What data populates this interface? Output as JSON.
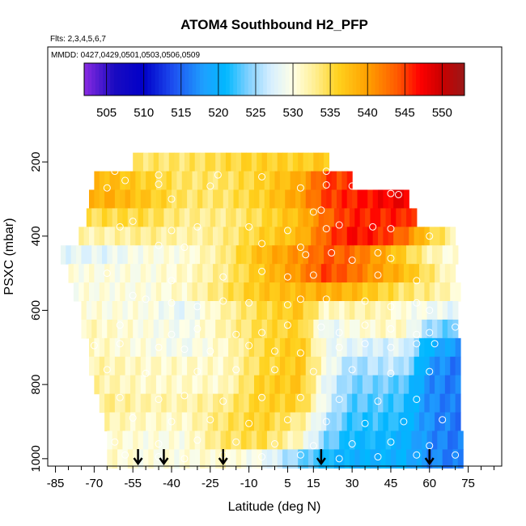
{
  "chart_data": {
    "type": "heatmap",
    "title": "ATOM4 Southbound H2_PFP",
    "flights_note": "Flts: 2,3,4,5,6,7",
    "dates_note": "MMDD: 0427,0429,0501,0503,0506,0509",
    "xlabel": "Latitude (deg N)",
    "ylabel": "PSXC (mbar)",
    "xlim": [
      -88,
      88
    ],
    "ylim": [
      1020,
      -110
    ],
    "x_ticks": [
      -85,
      -70,
      -55,
      -40,
      -25,
      -10,
      5,
      15,
      30,
      45,
      60,
      75
    ],
    "y_ticks": [
      200,
      400,
      600,
      800,
      1000
    ],
    "colorbar": {
      "ticks": [
        505,
        510,
        515,
        520,
        525,
        530,
        535,
        540,
        545,
        550
      ],
      "range": [
        502,
        553
      ],
      "stops": [
        {
          "v": 502,
          "c": "#8a2be2"
        },
        {
          "v": 506,
          "c": "#1a0bc0"
        },
        {
          "v": 510,
          "c": "#0000c8"
        },
        {
          "v": 514,
          "c": "#1e50f0"
        },
        {
          "v": 518,
          "c": "#1ea0ff"
        },
        {
          "v": 521,
          "c": "#00b8ff"
        },
        {
          "v": 524,
          "c": "#80d0ff"
        },
        {
          "v": 527,
          "c": "#d6efff"
        },
        {
          "v": 530,
          "c": "#ffffe6"
        },
        {
          "v": 533,
          "c": "#ffee90"
        },
        {
          "v": 536,
          "c": "#ffd21e"
        },
        {
          "v": 540,
          "c": "#ffa000"
        },
        {
          "v": 544,
          "c": "#ff5a00"
        },
        {
          "v": 547,
          "c": "#ff0000"
        },
        {
          "v": 550,
          "c": "#c80000"
        },
        {
          "v": 553,
          "c": "#9a1818"
        }
      ]
    },
    "pressure_levels": [
      200,
      250,
      300,
      350,
      400,
      450,
      500,
      550,
      600,
      650,
      700,
      750,
      800,
      850,
      900,
      950,
      1000
    ],
    "latitude_range_by_level": [
      [
        -55,
        20
      ],
      [
        -70,
        30
      ],
      [
        -72,
        52
      ],
      [
        -73,
        55
      ],
      [
        -76,
        70
      ],
      [
        -83,
        70
      ],
      [
        -80,
        70
      ],
      [
        -78,
        71
      ],
      [
        -75,
        71
      ],
      [
        -75,
        71
      ],
      [
        -72,
        72
      ],
      [
        -72,
        72
      ],
      [
        -70,
        72
      ],
      [
        -68,
        72
      ],
      [
        -66,
        72
      ],
      [
        -65,
        72
      ],
      [
        -65,
        72
      ]
    ],
    "profile_anchors": [
      {
        "lat": -80,
        "values": [
          533,
          537,
          537,
          534,
          532,
          528,
          530,
          530,
          531,
          532,
          532,
          532,
          533,
          534,
          534,
          534,
          534
        ]
      },
      {
        "lat": -65,
        "values": [
          533,
          538,
          539,
          535,
          532,
          528,
          530,
          530,
          530,
          531,
          531,
          532,
          532,
          533,
          532,
          531,
          531
        ]
      },
      {
        "lat": -50,
        "values": [
          534,
          536,
          537,
          535,
          533,
          530,
          530,
          530,
          530,
          530,
          530,
          531,
          531,
          532,
          531,
          530,
          530
        ]
      },
      {
        "lat": -35,
        "values": [
          534,
          534,
          534,
          533,
          532,
          530,
          531,
          531,
          528,
          529,
          529,
          531,
          531,
          532,
          531,
          530,
          530
        ]
      },
      {
        "lat": -20,
        "values": [
          535,
          534,
          534,
          533,
          533,
          533,
          533,
          534,
          532,
          532,
          531,
          531,
          531,
          533,
          534,
          534,
          531
        ]
      },
      {
        "lat": -5,
        "values": [
          536,
          536,
          536,
          535,
          536,
          538,
          537,
          537,
          535,
          535,
          535,
          535,
          536,
          536,
          536,
          535,
          529
        ]
      },
      {
        "lat": 10,
        "values": [
          536,
          539,
          540,
          538,
          538,
          541,
          541,
          538,
          537,
          536,
          537,
          537,
          537,
          536,
          533,
          531,
          524
        ]
      },
      {
        "lat": 20,
        "values": [
          537,
          545,
          545,
          543,
          544,
          544,
          545,
          539,
          531,
          528,
          529,
          530,
          528,
          528,
          526,
          524,
          521
        ]
      },
      {
        "lat": 30,
        "values": [
          538,
          545,
          546,
          546,
          547,
          543,
          543,
          538,
          532,
          530,
          528,
          525,
          524,
          523,
          522,
          521,
          520
        ]
      },
      {
        "lat": 40,
        "values": [
          538,
          546,
          547,
          546,
          546,
          540,
          540,
          536,
          532,
          531,
          527,
          526,
          524,
          523,
          522,
          521,
          520
        ]
      },
      {
        "lat": 50,
        "values": [
          538,
          547,
          548,
          546,
          543,
          536,
          538,
          534,
          530,
          531,
          528,
          526,
          523,
          522,
          521,
          520,
          520
        ]
      },
      {
        "lat": 60,
        "values": [
          538,
          547,
          547,
          542,
          536,
          532,
          534,
          533,
          529,
          525,
          520,
          518,
          517,
          517,
          517,
          517,
          517
        ]
      },
      {
        "lat": 70,
        "values": [
          538,
          547,
          547,
          540,
          532,
          530,
          530,
          531,
          528,
          523,
          518,
          516,
          516,
          516,
          516,
          516,
          516
        ]
      }
    ],
    "sample_points": [
      [
        -73,
        240
      ],
      [
        -62,
        225
      ],
      [
        -58,
        250
      ],
      [
        -45,
        235
      ],
      [
        -22,
        235
      ],
      [
        -5,
        240
      ],
      [
        20,
        225
      ],
      [
        35,
        225
      ],
      [
        -65,
        270
      ],
      [
        -45,
        260
      ],
      [
        -40,
        300
      ],
      [
        -25,
        265
      ],
      [
        10,
        270
      ],
      [
        20,
        262
      ],
      [
        30,
        265
      ],
      [
        45,
        285
      ],
      [
        48,
        288
      ],
      [
        55,
        270
      ],
      [
        15,
        335
      ],
      [
        18,
        330
      ],
      [
        -55,
        360
      ],
      [
        -60,
        375
      ],
      [
        -40,
        385
      ],
      [
        -30,
        375
      ],
      [
        -10,
        375
      ],
      [
        5,
        385
      ],
      [
        20,
        380
      ],
      [
        25,
        370
      ],
      [
        38,
        375
      ],
      [
        45,
        380
      ],
      [
        60,
        400
      ],
      [
        -45,
        425
      ],
      [
        -35,
        430
      ],
      [
        -5,
        420
      ],
      [
        10,
        430
      ],
      [
        12,
        450
      ],
      [
        22,
        445
      ],
      [
        30,
        465
      ],
      [
        40,
        445
      ],
      [
        45,
        460
      ],
      [
        -65,
        500
      ],
      [
        -40,
        520
      ],
      [
        -20,
        510
      ],
      [
        -5,
        495
      ],
      [
        5,
        510
      ],
      [
        15,
        505
      ],
      [
        40,
        505
      ],
      [
        55,
        520
      ],
      [
        -55,
        560
      ],
      [
        -50,
        570
      ],
      [
        -40,
        580
      ],
      [
        -30,
        590
      ],
      [
        -20,
        575
      ],
      [
        -10,
        580
      ],
      [
        5,
        585
      ],
      [
        10,
        570
      ],
      [
        20,
        570
      ],
      [
        35,
        575
      ],
      [
        45,
        590
      ],
      [
        55,
        580
      ],
      [
        60,
        600
      ],
      [
        -60,
        640
      ],
      [
        -40,
        665
      ],
      [
        -30,
        650
      ],
      [
        -15,
        665
      ],
      [
        -5,
        660
      ],
      [
        5,
        640
      ],
      [
        18,
        645
      ],
      [
        25,
        660
      ],
      [
        35,
        640
      ],
      [
        45,
        650
      ],
      [
        55,
        665
      ],
      [
        60,
        660
      ],
      [
        70,
        645
      ],
      [
        -70,
        695
      ],
      [
        -60,
        690
      ],
      [
        -45,
        700
      ],
      [
        -35,
        705
      ],
      [
        -25,
        710
      ],
      [
        -10,
        695
      ],
      [
        0,
        710
      ],
      [
        10,
        715
      ],
      [
        25,
        700
      ],
      [
        35,
        690
      ],
      [
        45,
        700
      ],
      [
        55,
        690
      ],
      [
        62,
        690
      ],
      [
        -65,
        760
      ],
      [
        -50,
        770
      ],
      [
        -30,
        765
      ],
      [
        -15,
        760
      ],
      [
        0,
        760
      ],
      [
        15,
        765
      ],
      [
        30,
        760
      ],
      [
        45,
        770
      ],
      [
        60,
        765
      ],
      [
        -60,
        835
      ],
      [
        -45,
        840
      ],
      [
        -35,
        830
      ],
      [
        -20,
        845
      ],
      [
        -5,
        835
      ],
      [
        10,
        835
      ],
      [
        25,
        840
      ],
      [
        40,
        845
      ],
      [
        55,
        840
      ],
      [
        -55,
        890
      ],
      [
        -40,
        900
      ],
      [
        -25,
        895
      ],
      [
        -10,
        905
      ],
      [
        5,
        895
      ],
      [
        20,
        900
      ],
      [
        35,
        905
      ],
      [
        50,
        900
      ],
      [
        65,
        895
      ],
      [
        -62,
        955
      ],
      [
        -45,
        960
      ],
      [
        -30,
        950
      ],
      [
        -15,
        955
      ],
      [
        0,
        960
      ],
      [
        15,
        965
      ],
      [
        30,
        960
      ],
      [
        45,
        955
      ],
      [
        60,
        965
      ],
      [
        -58,
        990
      ],
      [
        -45,
        995
      ],
      [
        -35,
        1000
      ],
      [
        -20,
        990
      ],
      [
        -5,
        995
      ],
      [
        10,
        990
      ],
      [
        25,
        1000
      ],
      [
        40,
        995
      ],
      [
        55,
        990
      ],
      [
        70,
        990
      ]
    ],
    "arrow_latitudes": [
      -53,
      -43,
      -20,
      18,
      60
    ]
  }
}
